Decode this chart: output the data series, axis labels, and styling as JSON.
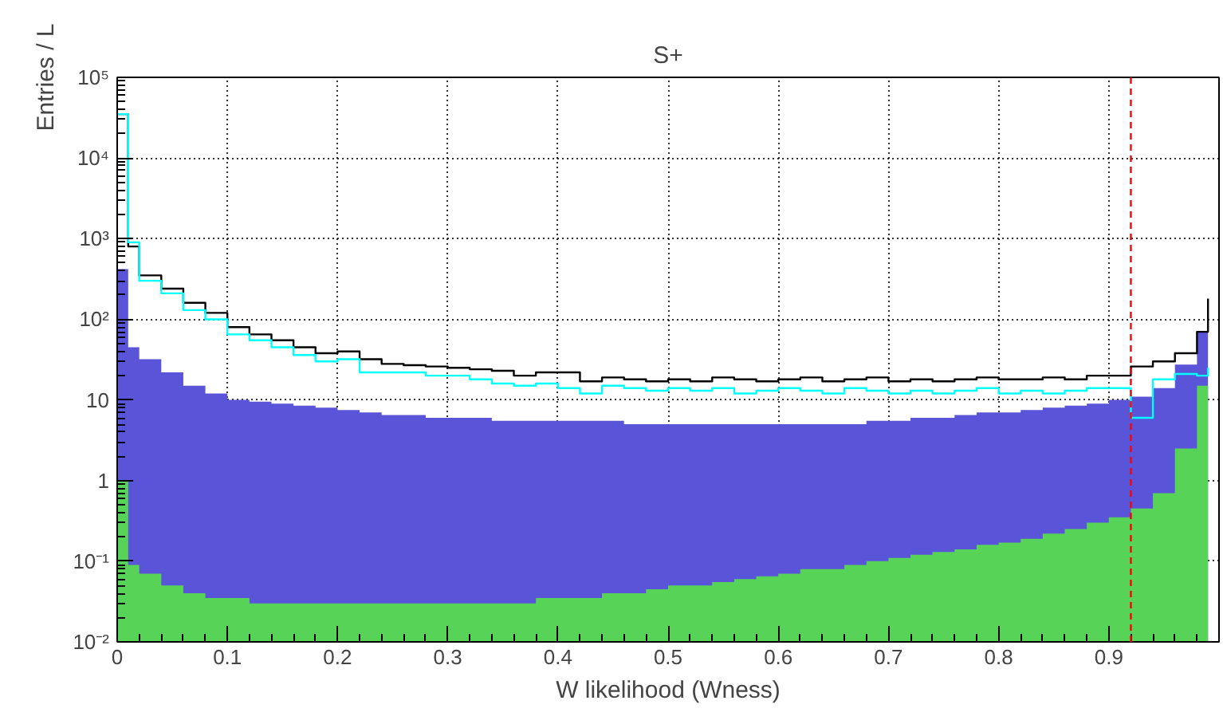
{
  "chart_data": {
    "type": "area",
    "title": "S+",
    "xlabel": "W likelihood (Wness)",
    "ylabel": "Entries / L",
    "series": [
      {
        "type": "area",
        "color": "#5a55d8",
        "x": [
          0,
          0.01,
          0.02,
          0.04,
          0.06,
          0.08,
          0.1,
          0.12,
          0.14,
          0.16,
          0.18,
          0.2,
          0.22,
          0.24,
          0.26,
          0.28,
          0.3,
          0.32,
          0.34,
          0.36,
          0.38,
          0.4,
          0.42,
          0.44,
          0.46,
          0.48,
          0.5,
          0.52,
          0.54,
          0.56,
          0.58,
          0.6,
          0.62,
          0.64,
          0.66,
          0.68,
          0.7,
          0.72,
          0.74,
          0.76,
          0.78,
          0.8,
          0.82,
          0.84,
          0.86,
          0.88,
          0.9,
          0.92,
          0.94,
          0.96,
          0.98,
          0.99
        ],
        "values": [
          420,
          45,
          32,
          22,
          15,
          12,
          10,
          9.5,
          9,
          8.5,
          8,
          7.5,
          7,
          6.5,
          6.5,
          6,
          6,
          6,
          5.5,
          5.5,
          5.5,
          5.5,
          5.5,
          5.5,
          5,
          5,
          5,
          5,
          5,
          5,
          5,
          5,
          5,
          5,
          5,
          5.5,
          5.5,
          6,
          6,
          6.5,
          7,
          7,
          7.5,
          8,
          8.5,
          9,
          10,
          11,
          14,
          27.5,
          70,
          190
        ]
      },
      {
        "type": "area",
        "color": "#57d457",
        "x": [
          0,
          0.01,
          0.02,
          0.04,
          0.06,
          0.08,
          0.1,
          0.12,
          0.14,
          0.16,
          0.18,
          0.2,
          0.22,
          0.24,
          0.26,
          0.28,
          0.3,
          0.32,
          0.34,
          0.36,
          0.38,
          0.4,
          0.42,
          0.44,
          0.46,
          0.48,
          0.5,
          0.52,
          0.54,
          0.56,
          0.58,
          0.6,
          0.62,
          0.64,
          0.66,
          0.68,
          0.7,
          0.72,
          0.74,
          0.76,
          0.78,
          0.8,
          0.82,
          0.84,
          0.86,
          0.88,
          0.9,
          0.92,
          0.94,
          0.96,
          0.98,
          0.99
        ],
        "values": [
          1.0,
          0.09,
          0.07,
          0.05,
          0.04,
          0.035,
          0.035,
          0.03,
          0.03,
          0.03,
          0.03,
          0.03,
          0.03,
          0.03,
          0.03,
          0.03,
          0.03,
          0.03,
          0.03,
          0.03,
          0.035,
          0.035,
          0.035,
          0.04,
          0.04,
          0.045,
          0.05,
          0.05,
          0.055,
          0.06,
          0.065,
          0.07,
          0.08,
          0.08,
          0.09,
          0.1,
          0.11,
          0.12,
          0.13,
          0.14,
          0.16,
          0.17,
          0.19,
          0.22,
          0.25,
          0.3,
          0.35,
          0.45,
          0.7,
          2.5,
          15,
          55
        ]
      },
      {
        "type": "step",
        "color": "#000000",
        "x": [
          0,
          0.01,
          0.02,
          0.04,
          0.06,
          0.08,
          0.1,
          0.12,
          0.14,
          0.16,
          0.18,
          0.2,
          0.22,
          0.24,
          0.26,
          0.28,
          0.3,
          0.32,
          0.34,
          0.36,
          0.38,
          0.4,
          0.42,
          0.44,
          0.46,
          0.48,
          0.5,
          0.52,
          0.54,
          0.56,
          0.58,
          0.6,
          0.62,
          0.64,
          0.66,
          0.68,
          0.7,
          0.72,
          0.74,
          0.76,
          0.78,
          0.8,
          0.82,
          0.84,
          0.86,
          0.88,
          0.9,
          0.92,
          0.94,
          0.96,
          0.98,
          0.99
        ],
        "values": [
          35000,
          800,
          350,
          240,
          160,
          120,
          80,
          65,
          55,
          45,
          38,
          40,
          32,
          28,
          27,
          26,
          25,
          24,
          23,
          20,
          22,
          22,
          17,
          19,
          18,
          17,
          18,
          17,
          19,
          18,
          17,
          18,
          19,
          17,
          18,
          19,
          17,
          18,
          17,
          18,
          19,
          18,
          18,
          19,
          18,
          20,
          20,
          26,
          30,
          38,
          70,
          180
        ]
      },
      {
        "type": "step",
        "color": "#00ffff",
        "x": [
          0,
          0.01,
          0.02,
          0.04,
          0.06,
          0.08,
          0.1,
          0.12,
          0.14,
          0.16,
          0.18,
          0.2,
          0.22,
          0.24,
          0.26,
          0.28,
          0.3,
          0.32,
          0.34,
          0.36,
          0.38,
          0.4,
          0.42,
          0.44,
          0.46,
          0.48,
          0.5,
          0.52,
          0.54,
          0.56,
          0.58,
          0.6,
          0.62,
          0.64,
          0.66,
          0.68,
          0.7,
          0.72,
          0.74,
          0.76,
          0.78,
          0.8,
          0.82,
          0.84,
          0.86,
          0.88,
          0.9,
          0.92,
          0.94,
          0.96,
          0.98,
          0.99
        ],
        "values": [
          35000,
          900,
          300,
          210,
          130,
          100,
          65,
          55,
          45,
          36,
          30,
          32,
          22,
          22,
          22,
          20,
          20,
          18,
          16,
          15,
          16,
          14,
          12,
          15,
          14,
          13,
          14,
          13,
          14,
          12,
          13,
          14,
          13,
          12,
          14,
          13,
          12,
          13,
          12,
          13,
          14,
          12,
          13,
          12,
          13,
          14,
          14,
          6,
          18,
          21,
          20,
          25
        ]
      }
    ],
    "xlim": [
      0,
      1
    ],
    "ylim": [
      0.01,
      100000
    ],
    "log": "y",
    "xticks": [
      0,
      0.1,
      0.2,
      0.3,
      0.4,
      0.5,
      0.6,
      0.7,
      0.8,
      0.9
    ],
    "yticks": [
      {
        "value": 0.01,
        "label": "10⁻²"
      },
      {
        "value": 0.1,
        "label": "10⁻¹"
      },
      1,
      10,
      {
        "value": 100,
        "label": "10²"
      },
      {
        "value": 1000,
        "label": "10³"
      },
      {
        "value": 10000,
        "label": "10⁴"
      },
      {
        "value": 100000,
        "label": "10⁵"
      }
    ],
    "grid": true,
    "ref_lines": [
      {
        "axis": "x",
        "value": 0.92,
        "label": null,
        "color": "#ff0000",
        "line_style": "dashed"
      }
    ]
  }
}
